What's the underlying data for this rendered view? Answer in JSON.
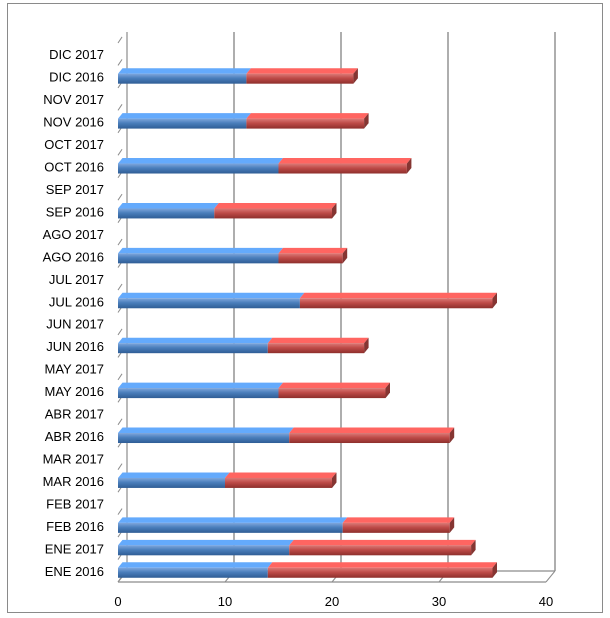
{
  "chart_data": {
    "type": "bar",
    "orientation": "horizontal",
    "stacked": true,
    "three_d": true,
    "categories": [
      "ENE 2016",
      "ENE 2017",
      "FEB 2016",
      "FEB 2017",
      "MAR 2016",
      "MAR 2017",
      "ABR 2016",
      "ABR 2017",
      "MAY 2016",
      "MAY 2017",
      "JUN 2016",
      "JUN 2017",
      "JUL 2016",
      "JUL 2017",
      "AGO 2016",
      "AGO 2017",
      "SEP 2016",
      "SEP 2017",
      "OCT 2016",
      "OCT 2017",
      "NOV 2016",
      "NOV 2017",
      "DIC 2016",
      "DIC 2017"
    ],
    "series": [
      {
        "color": "#4a7ebb",
        "values": [
          14,
          16,
          21,
          0,
          10,
          0,
          16,
          0,
          15,
          0,
          14,
          0,
          17,
          0,
          15,
          0,
          9,
          0,
          15,
          0,
          12,
          0,
          12,
          0
        ]
      },
      {
        "color": "#be4b48",
        "values": [
          21,
          17,
          10,
          0,
          10,
          0,
          15,
          0,
          10,
          0,
          9,
          0,
          18,
          0,
          6,
          0,
          11,
          0,
          12,
          0,
          11,
          0,
          10,
          0
        ]
      }
    ],
    "xlim": [
      0,
      40
    ],
    "xticks": [
      "0",
      "10",
      "20",
      "30",
      "40"
    ],
    "grid": true,
    "legend": "none",
    "title": "",
    "xlabel": "",
    "ylabel": ""
  }
}
